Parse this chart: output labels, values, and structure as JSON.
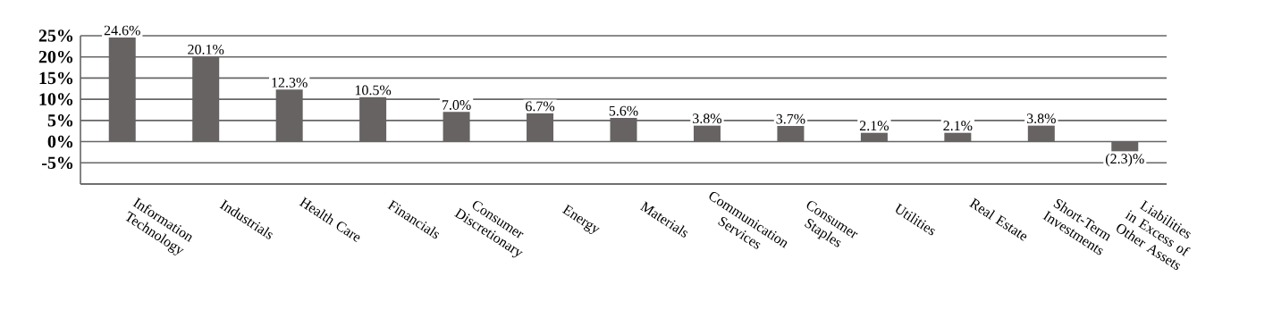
{
  "chart_data": {
    "type": "bar",
    "categories": [
      "Information Technology",
      "Industrials",
      "Health Care",
      "Financials",
      "Consumer Discretionary",
      "Energy",
      "Materials",
      "Communication Services",
      "Consumer Staples",
      "Utilities",
      "Real Estate",
      "Short-Term Investments",
      "Liabilities in Excess of Other Assets"
    ],
    "values": [
      24.6,
      20.1,
      12.3,
      10.5,
      7.0,
      6.7,
      5.6,
      3.8,
      3.7,
      2.1,
      2.1,
      3.8,
      -2.3
    ],
    "value_labels": [
      "24.6%",
      "20.1%",
      "12.3%",
      "10.5%",
      "7.0%",
      "6.7%",
      "5.6%",
      "3.8%",
      "3.7%",
      "2.1%",
      "2.1%",
      "3.8%",
      "(2.3)%"
    ],
    "color": "#666362",
    "ylim": [
      -10,
      25
    ],
    "yticks": [
      {
        "value": -10,
        "label": null
      },
      {
        "value": -5,
        "label": "-5%"
      },
      {
        "value": 0,
        "label": "0%"
      },
      {
        "value": 5,
        "label": "5%"
      },
      {
        "value": 10,
        "label": "10%"
      },
      {
        "value": 15,
        "label": "15%"
      },
      {
        "value": 20,
        "label": "20%"
      },
      {
        "value": 25,
        "label": "25%"
      }
    ],
    "grid": "y"
  }
}
